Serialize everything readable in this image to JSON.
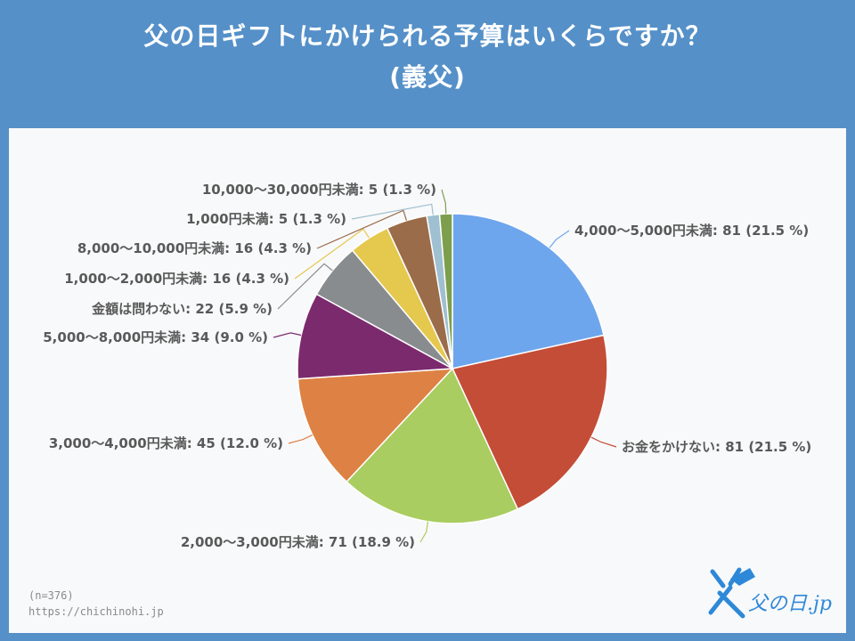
{
  "header": {
    "title_line1": "父の日ギフトにかけられる予算はいくらですか？",
    "title_line2": "(義父)"
  },
  "footer": {
    "sample": "(n=376)",
    "url": "https://chichinohi.jp"
  },
  "logo": {
    "text": "父の日.jp"
  },
  "colors": {
    "background": "#5590c8",
    "panel": "#f8f9fa",
    "label": "#595959"
  },
  "chart_data": {
    "type": "pie",
    "title": "父の日ギフトにかけられる予算はいくらですか？ (義父)",
    "slices": [
      {
        "label": "4,000〜5,000円未満",
        "value": 81,
        "percent": "21.5 %",
        "color": "#6ea6ee"
      },
      {
        "label": "お金をかけない",
        "value": 81,
        "percent": "21.5 %",
        "color": "#c44d37"
      },
      {
        "label": "2,000〜3,000円未満",
        "value": 71,
        "percent": "18.9 %",
        "color": "#a9cd60"
      },
      {
        "label": "3,000〜4,000円未満",
        "value": 45,
        "percent": "12.0 %",
        "color": "#dd8244"
      },
      {
        "label": "5,000〜8,000円未満",
        "value": 34,
        "percent": "9.0 %",
        "color": "#7c2a6e"
      },
      {
        "label": "金額は問わない",
        "value": 22,
        "percent": "5.9 %",
        "color": "#898c8e"
      },
      {
        "label": "1,000〜2,000円未満",
        "value": 16,
        "percent": "4.3 %",
        "color": "#e5c84e"
      },
      {
        "label": "8,000〜10,000円未満",
        "value": 16,
        "percent": "4.3 %",
        "color": "#9b6c4a"
      },
      {
        "label": "1,000円未満",
        "value": 5,
        "percent": "1.3 %",
        "color": "#9fc0d0"
      },
      {
        "label": "10,000〜30,000円未満",
        "value": 5,
        "percent": "1.3 %",
        "color": "#7d9e4c"
      }
    ]
  }
}
